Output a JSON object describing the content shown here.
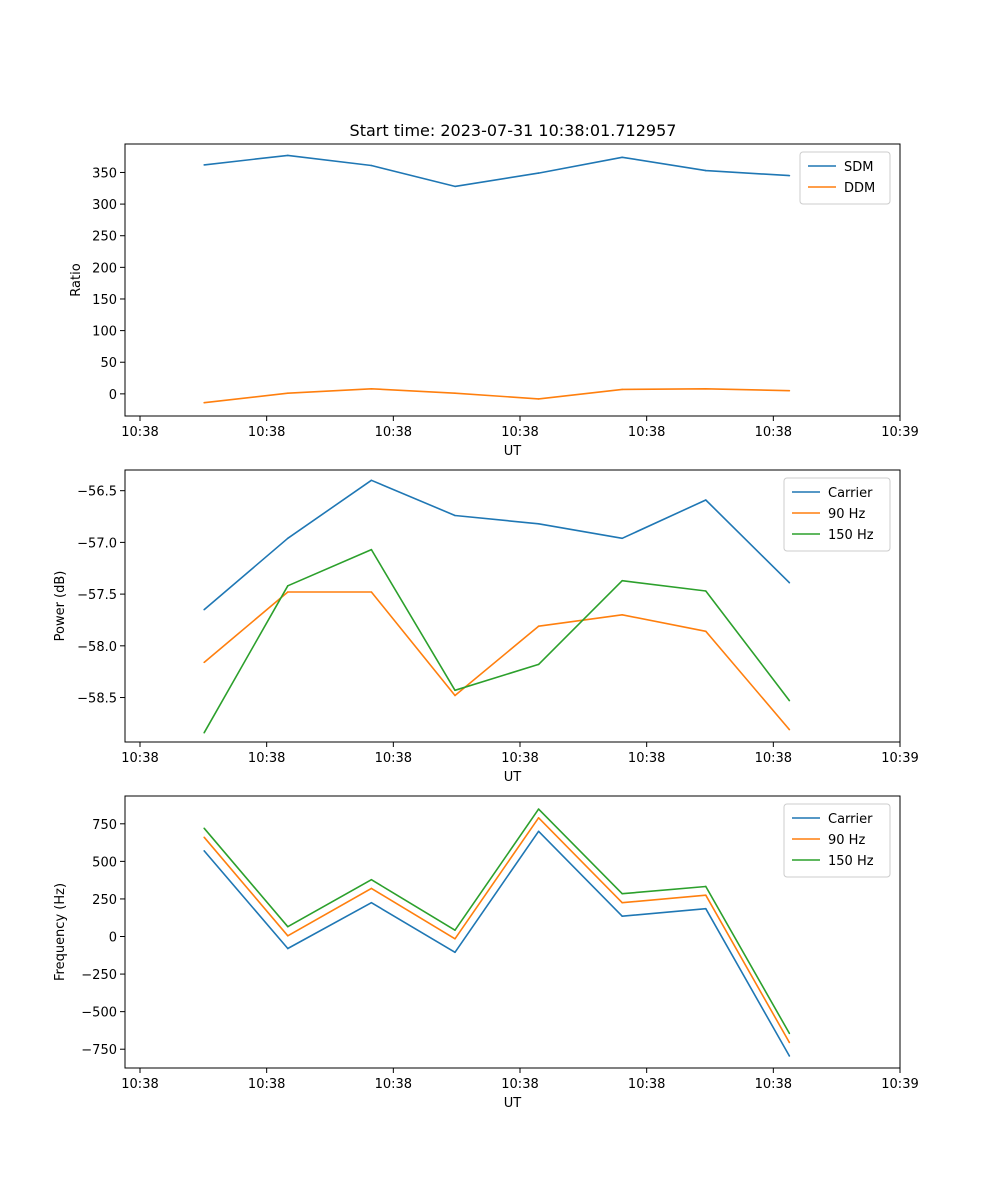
{
  "figure": {
    "title": "Start time: 2023-07-31 10:38:01.712957"
  },
  "chart_data": [
    {
      "type": "line",
      "x_tick_labels": [
        "10:38",
        "10:38",
        "10:38",
        "10:38",
        "10:38",
        "10:38",
        "10:39"
      ],
      "x_index": [
        0.76,
        1.75,
        2.74,
        3.73,
        4.72,
        5.71,
        6.7,
        7.69
      ],
      "xlim": [
        0,
        9.1
      ],
      "x_ticks": [
        0,
        1.5,
        3.0,
        4.5,
        6.0,
        7.5,
        9.0
      ],
      "xlabel": "UT",
      "ylabel": "Ratio",
      "ylim": [
        -35,
        395
      ],
      "y_ticks": [
        0,
        50,
        100,
        150,
        200,
        250,
        300,
        350
      ],
      "legend_position": "top-right",
      "series": [
        {
          "name": "SDM",
          "color": "#1f77b4",
          "values": [
            362,
            377,
            361,
            328,
            349,
            374,
            353,
            345
          ]
        },
        {
          "name": "DDM",
          "color": "#ff7f0e",
          "values": [
            -14,
            1,
            8,
            1,
            -8,
            7,
            8,
            5
          ]
        }
      ]
    },
    {
      "type": "line",
      "x_tick_labels": [
        "10:38",
        "10:38",
        "10:38",
        "10:38",
        "10:38",
        "10:38",
        "10:39"
      ],
      "x_index": [
        0.76,
        1.75,
        2.74,
        3.73,
        4.72,
        5.71,
        6.7,
        7.69
      ],
      "xlim": [
        0,
        9.1
      ],
      "x_ticks": [
        0,
        1.5,
        3.0,
        4.5,
        6.0,
        7.5,
        9.0
      ],
      "xlabel": "UT",
      "ylabel": "Power (dB)",
      "ylim": [
        -58.93,
        -56.3
      ],
      "y_ticks": [
        -58.5,
        -58.0,
        -57.5,
        -57.0,
        -56.5
      ],
      "y_tick_labels": [
        "−58.5",
        "−58.0",
        "−57.5",
        "−57.0",
        "−56.5"
      ],
      "legend_position": "top-right",
      "series": [
        {
          "name": "Carrier",
          "color": "#1f77b4",
          "values": [
            -57.65,
            -56.96,
            -56.4,
            -56.74,
            -56.82,
            -56.96,
            -56.59,
            -57.39
          ]
        },
        {
          "name": "90 Hz",
          "color": "#ff7f0e",
          "values": [
            -58.16,
            -57.48,
            -57.48,
            -58.48,
            -57.81,
            -57.7,
            -57.86,
            -58.81
          ]
        },
        {
          "name": "150 Hz",
          "color": "#2ca02c",
          "values": [
            -58.84,
            -57.42,
            -57.07,
            -58.43,
            -58.18,
            -57.37,
            -57.47,
            -58.53
          ]
        }
      ]
    },
    {
      "type": "line",
      "x_tick_labels": [
        "10:38",
        "10:38",
        "10:38",
        "10:38",
        "10:38",
        "10:38",
        "10:39"
      ],
      "x_index": [
        0.76,
        1.75,
        2.74,
        3.73,
        4.72,
        5.71,
        6.7,
        7.69
      ],
      "xlim": [
        0,
        9.1
      ],
      "x_ticks": [
        0,
        1.5,
        3.0,
        4.5,
        6.0,
        7.5,
        9.0
      ],
      "xlabel": "UT",
      "ylabel": "Frequency (Hz)",
      "ylim": [
        -875,
        935
      ],
      "y_ticks": [
        -750,
        -500,
        -250,
        0,
        250,
        500,
        750
      ],
      "y_tick_labels": [
        "−750",
        "−500",
        "−250",
        "0",
        "250",
        "500",
        "750"
      ],
      "legend_position": "top-right",
      "series": [
        {
          "name": "Carrier",
          "color": "#1f77b4",
          "values": [
            570,
            -80,
            225,
            -105,
            700,
            135,
            185,
            -795
          ]
        },
        {
          "name": "90 Hz",
          "color": "#ff7f0e",
          "values": [
            660,
            5,
            320,
            -15,
            790,
            225,
            275,
            -705
          ]
        },
        {
          "name": "150 Hz",
          "color": "#2ca02c",
          "values": [
            720,
            65,
            378,
            42,
            848,
            285,
            333,
            -645
          ]
        }
      ]
    }
  ]
}
